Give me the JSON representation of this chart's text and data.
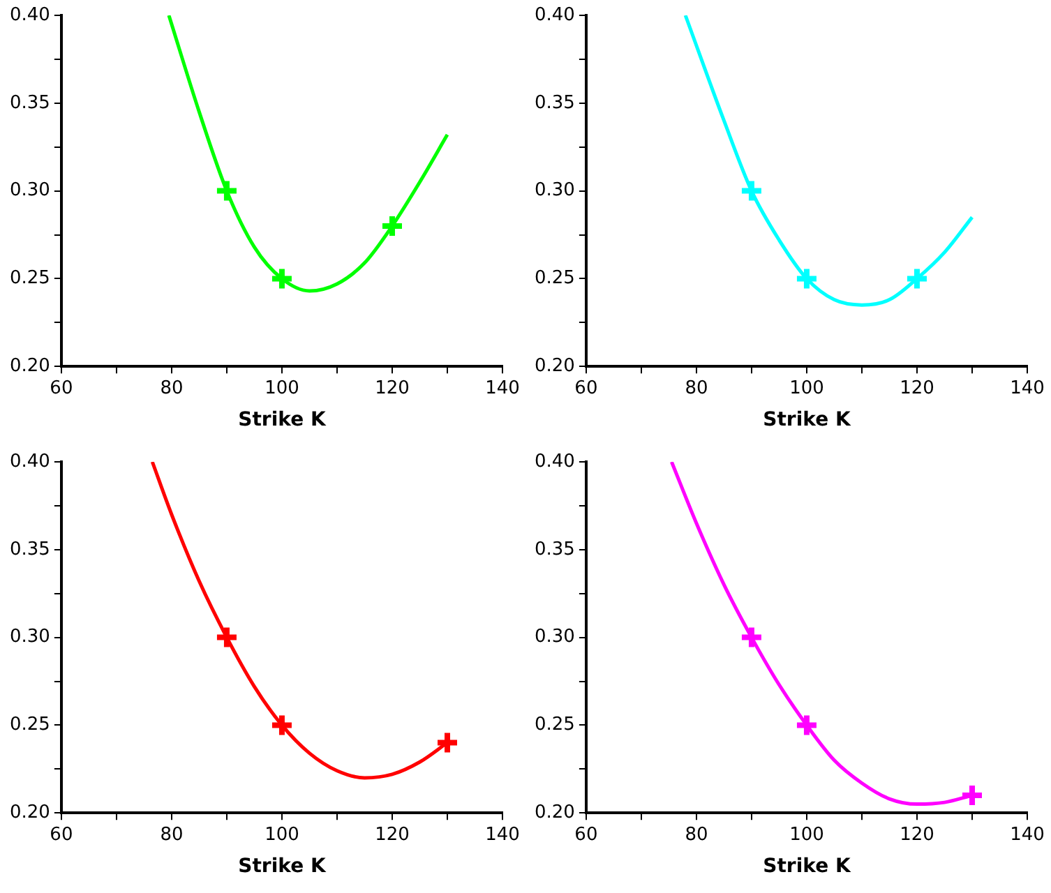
{
  "chart_data": [
    {
      "type": "line",
      "xlabel": "Strike K",
      "xlim": [
        60,
        140
      ],
      "xticks": [
        60,
        {
          "value": 70,
          "label": null
        },
        80,
        {
          "value": 90,
          "label": null
        },
        100,
        {
          "value": 110,
          "label": null
        },
        120,
        {
          "value": 130,
          "label": null
        },
        140
      ],
      "ylim": [
        0.2,
        0.4
      ],
      "yticks": [
        {
          "value": 0.2,
          "label": "0.20"
        },
        {
          "value": 0.225,
          "label": null
        },
        {
          "value": 0.25,
          "label": "0.25"
        },
        {
          "value": 0.275,
          "label": null
        },
        {
          "value": 0.3,
          "label": "0.30"
        },
        {
          "value": 0.325,
          "label": null
        },
        {
          "value": 0.35,
          "label": "0.35"
        },
        {
          "value": 0.375,
          "label": null
        },
        {
          "value": 0.4,
          "label": "0.40"
        }
      ],
      "grid": false,
      "legend": false,
      "series": [
        {
          "type": "line",
          "marker": "none",
          "color": "#00ff00",
          "x": [
            79.5,
            85,
            90,
            95,
            100,
            105,
            110,
            115,
            120,
            125,
            130
          ],
          "values": [
            0.4,
            0.345,
            0.3,
            0.268,
            0.25,
            0.243,
            0.247,
            0.259,
            0.28,
            0.305,
            0.332
          ]
        },
        {
          "type": "scatter",
          "marker": "cross",
          "color": "#00ff00",
          "x": [
            90,
            100,
            120
          ],
          "values": [
            0.3,
            0.25,
            0.28
          ]
        }
      ]
    },
    {
      "type": "line",
      "xlabel": "Strike K",
      "xlim": [
        60,
        140
      ],
      "xticks": [
        60,
        {
          "value": 70,
          "label": null
        },
        80,
        {
          "value": 90,
          "label": null
        },
        100,
        {
          "value": 110,
          "label": null
        },
        120,
        {
          "value": 130,
          "label": null
        },
        140
      ],
      "ylim": [
        0.2,
        0.4
      ],
      "yticks": [
        {
          "value": 0.2,
          "label": "0.20"
        },
        {
          "value": 0.225,
          "label": null
        },
        {
          "value": 0.25,
          "label": "0.25"
        },
        {
          "value": 0.275,
          "label": null
        },
        {
          "value": 0.3,
          "label": "0.30"
        },
        {
          "value": 0.325,
          "label": null
        },
        {
          "value": 0.35,
          "label": "0.35"
        },
        {
          "value": 0.375,
          "label": null
        },
        {
          "value": 0.4,
          "label": "0.40"
        }
      ],
      "grid": false,
      "legend": false,
      "series": [
        {
          "type": "line",
          "marker": "none",
          "color": "#00ffff",
          "x": [
            78,
            85,
            90,
            95,
            100,
            105,
            110,
            115,
            120,
            125,
            130
          ],
          "values": [
            0.4,
            0.34,
            0.3,
            0.272,
            0.25,
            0.238,
            0.235,
            0.238,
            0.25,
            0.265,
            0.285
          ]
        },
        {
          "type": "scatter",
          "marker": "cross",
          "color": "#00ffff",
          "x": [
            90,
            100,
            120
          ],
          "values": [
            0.3,
            0.25,
            0.25
          ]
        }
      ]
    },
    {
      "type": "line",
      "xlabel": "Strike K",
      "xlim": [
        60,
        140
      ],
      "xticks": [
        60,
        {
          "value": 70,
          "label": null
        },
        80,
        {
          "value": 90,
          "label": null
        },
        100,
        {
          "value": 110,
          "label": null
        },
        120,
        {
          "value": 130,
          "label": null
        },
        140
      ],
      "ylim": [
        0.2,
        0.4
      ],
      "yticks": [
        {
          "value": 0.2,
          "label": "0.20"
        },
        {
          "value": 0.225,
          "label": null
        },
        {
          "value": 0.25,
          "label": "0.25"
        },
        {
          "value": 0.275,
          "label": null
        },
        {
          "value": 0.3,
          "label": "0.30"
        },
        {
          "value": 0.325,
          "label": null
        },
        {
          "value": 0.35,
          "label": "0.35"
        },
        {
          "value": 0.375,
          "label": null
        },
        {
          "value": 0.4,
          "label": "0.40"
        }
      ],
      "grid": false,
      "legend": false,
      "series": [
        {
          "type": "line",
          "marker": "none",
          "color": "#ff0000",
          "x": [
            76.5,
            80,
            85,
            90,
            95,
            100,
            105,
            110,
            115,
            120,
            125,
            130
          ],
          "values": [
            0.4,
            0.37,
            0.332,
            0.3,
            0.272,
            0.25,
            0.234,
            0.224,
            0.22,
            0.222,
            0.229,
            0.24
          ]
        },
        {
          "type": "scatter",
          "marker": "cross",
          "color": "#ff0000",
          "x": [
            90,
            100,
            130
          ],
          "values": [
            0.3,
            0.25,
            0.24
          ]
        }
      ]
    },
    {
      "type": "line",
      "xlabel": "Strike K",
      "xlim": [
        60,
        140
      ],
      "xticks": [
        60,
        {
          "value": 70,
          "label": null
        },
        80,
        {
          "value": 90,
          "label": null
        },
        100,
        {
          "value": 110,
          "label": null
        },
        120,
        {
          "value": 130,
          "label": null
        },
        140
      ],
      "ylim": [
        0.2,
        0.4
      ],
      "yticks": [
        {
          "value": 0.2,
          "label": "0.20"
        },
        {
          "value": 0.225,
          "label": null
        },
        {
          "value": 0.25,
          "label": "0.25"
        },
        {
          "value": 0.275,
          "label": null
        },
        {
          "value": 0.3,
          "label": "0.30"
        },
        {
          "value": 0.325,
          "label": null
        },
        {
          "value": 0.35,
          "label": "0.35"
        },
        {
          "value": 0.375,
          "label": null
        },
        {
          "value": 0.4,
          "label": "0.40"
        }
      ],
      "grid": false,
      "legend": false,
      "series": [
        {
          "type": "line",
          "marker": "none",
          "color": "#ff00ff",
          "x": [
            75.5,
            80,
            85,
            90,
            95,
            100,
            105,
            110,
            115,
            120,
            125,
            130
          ],
          "values": [
            0.4,
            0.365,
            0.33,
            0.3,
            0.273,
            0.25,
            0.23,
            0.217,
            0.208,
            0.205,
            0.206,
            0.21
          ]
        },
        {
          "type": "scatter",
          "marker": "cross",
          "color": "#ff00ff",
          "x": [
            90,
            100,
            130
          ],
          "values": [
            0.3,
            0.25,
            0.21
          ]
        }
      ]
    }
  ]
}
